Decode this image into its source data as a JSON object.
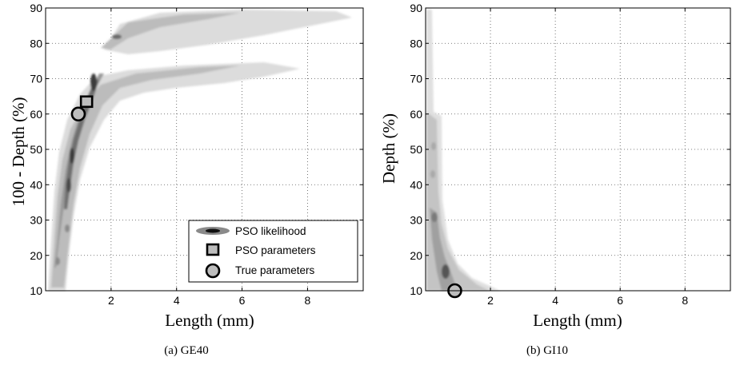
{
  "chart_data": [
    {
      "type": "contour",
      "caption": "(a) GE40",
      "xlabel": "Length (mm)",
      "ylabel": "100 - Depth (%)",
      "xlim": [
        0,
        9.7
      ],
      "ylim": [
        10,
        90
      ],
      "xticks": [
        "2",
        "4",
        "6",
        "8"
      ],
      "yticks": [
        "10",
        "20",
        "30",
        "40",
        "50",
        "60",
        "70",
        "80",
        "90"
      ],
      "grid": true,
      "legend": {
        "placement": "bottom-right",
        "entries": [
          "PSO likelihood",
          "PSO parameters",
          "True parameters"
        ]
      },
      "pso_parameters": {
        "x": 1.25,
        "y": 63.5
      },
      "true_parameters": {
        "x": 1.0,
        "y": 60.0
      },
      "likelihood_ridge": [
        {
          "x": 0.3,
          "y": 14
        },
        {
          "x": 0.45,
          "y": 22
        },
        {
          "x": 0.55,
          "y": 30
        },
        {
          "x": 0.55,
          "y": 37
        },
        {
          "x": 0.6,
          "y": 44
        },
        {
          "x": 0.7,
          "y": 50
        },
        {
          "x": 0.8,
          "y": 56
        },
        {
          "x": 0.95,
          "y": 61
        },
        {
          "x": 1.15,
          "y": 67
        },
        {
          "x": 1.35,
          "y": 72
        },
        {
          "x": 1.55,
          "y": 77
        },
        {
          "x": 2.0,
          "y": 82
        },
        {
          "x": 3.0,
          "y": 85
        },
        {
          "x": 4.5,
          "y": 88
        }
      ]
    },
    {
      "type": "contour",
      "caption": "(b) GI10",
      "xlabel": "Length (mm)",
      "ylabel": "Depth (%)",
      "xlim": [
        0,
        9.4
      ],
      "ylim": [
        10,
        90
      ],
      "xticks": [
        "2",
        "4",
        "6",
        "8"
      ],
      "yticks": [
        "10",
        "20",
        "30",
        "40",
        "50",
        "60",
        "70",
        "80",
        "90"
      ],
      "grid": true,
      "true_parameters": {
        "x": 0.9,
        "y": 10.0
      },
      "likelihood_ridge": [
        {
          "x": 0.05,
          "y": 88
        },
        {
          "x": 0.1,
          "y": 70
        },
        {
          "x": 0.15,
          "y": 55
        },
        {
          "x": 0.2,
          "y": 42
        },
        {
          "x": 0.25,
          "y": 30
        },
        {
          "x": 0.35,
          "y": 22
        },
        {
          "x": 0.5,
          "y": 16
        },
        {
          "x": 0.7,
          "y": 12
        },
        {
          "x": 1.5,
          "y": 11
        },
        {
          "x": 2.5,
          "y": 10
        }
      ]
    }
  ]
}
